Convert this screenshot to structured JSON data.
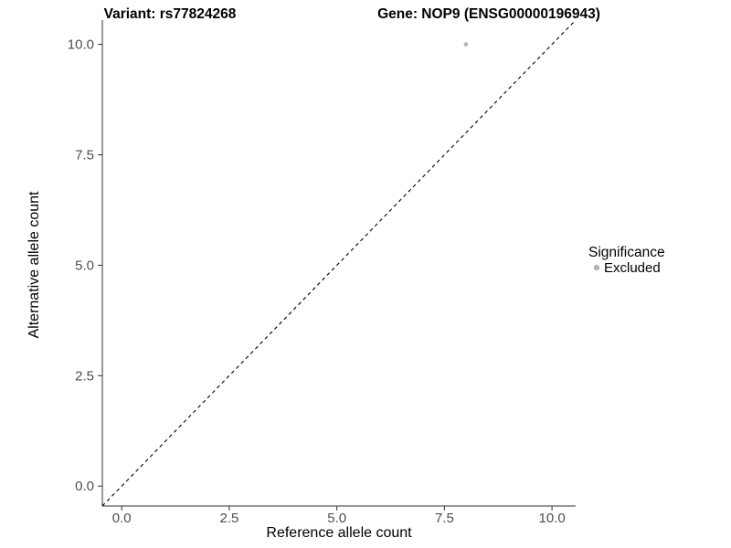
{
  "chart_data": {
    "type": "scatter",
    "titles": [
      "Variant: rs77824268",
      "Gene: NOP9 (ENSG00000196943)"
    ],
    "xlabel": "Reference allele count",
    "ylabel": "Alternative allele count",
    "xlim": [
      -0.45,
      10.55
    ],
    "ylim": [
      -0.45,
      10.55
    ],
    "xticks": [
      0,
      2.5,
      5,
      7.5,
      10
    ],
    "yticks": [
      0,
      2.5,
      5,
      7.5,
      10
    ],
    "tick_decimals": 1,
    "grid": false,
    "series": [
      {
        "name": "Excluded",
        "color": "#b3b3b3",
        "points": [
          {
            "x": 8,
            "y": 10
          }
        ]
      }
    ],
    "reference_line": {
      "kind": "abline",
      "intercept": 0,
      "slope": 1,
      "style": "dashed",
      "color": "#000000"
    },
    "legend": {
      "title": "Significance",
      "position": "right",
      "entries": [
        {
          "label": "Excluded",
          "color": "#b3b3b3"
        }
      ]
    }
  },
  "colors": {
    "background": "#ffffff",
    "axis_line": "#333333",
    "tick_label": "#4d4d4d",
    "point": "#b3b3b3"
  }
}
